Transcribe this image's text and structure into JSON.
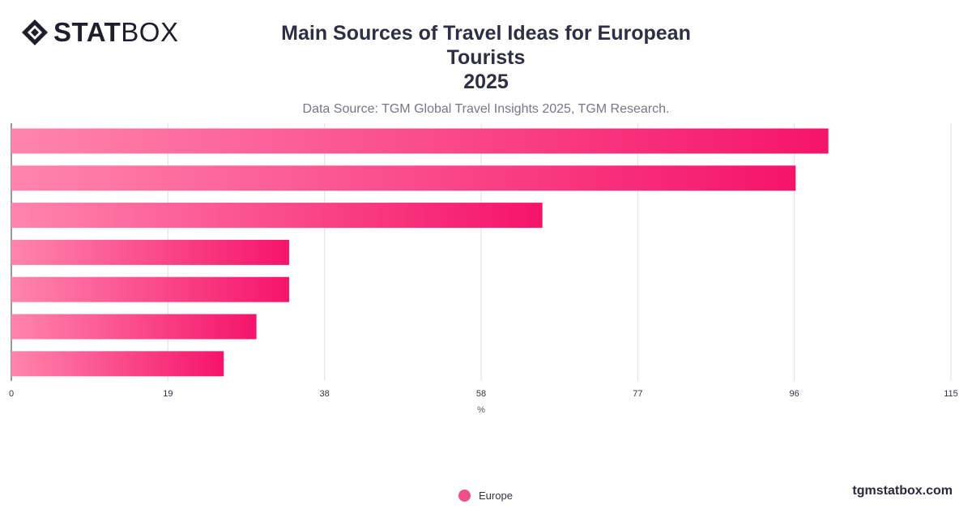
{
  "brand": {
    "logo_bold": "STAT",
    "logo_regular": "BOX",
    "watermark": "tgmstatbox.com"
  },
  "colors": {
    "bar_start": "#ff85ad",
    "bar_end": "#f5146a",
    "grid": "#e0e0e0",
    "axis": "#333333"
  },
  "chart_data": {
    "type": "bar",
    "orientation": "horizontal",
    "title_line1": "Main Sources of Travel Ideas for European Tourists",
    "title_line2": "2025",
    "subtitle": "Data Source: TGM Global Travel Insights 2025, TGM Research.",
    "xlabel": "%",
    "xlim": [
      0,
      115
    ],
    "x_ticks": [
      "0",
      "19",
      "38",
      "58",
      "77",
      "96",
      "115"
    ],
    "categories": [
      "",
      "",
      "",
      "",
      "",
      "",
      ""
    ],
    "series": [
      {
        "name": "Europe",
        "values": [
          100,
          96,
          65,
          34,
          34,
          30,
          26
        ]
      }
    ],
    "grid": true,
    "legend_position": "bottom-center"
  }
}
